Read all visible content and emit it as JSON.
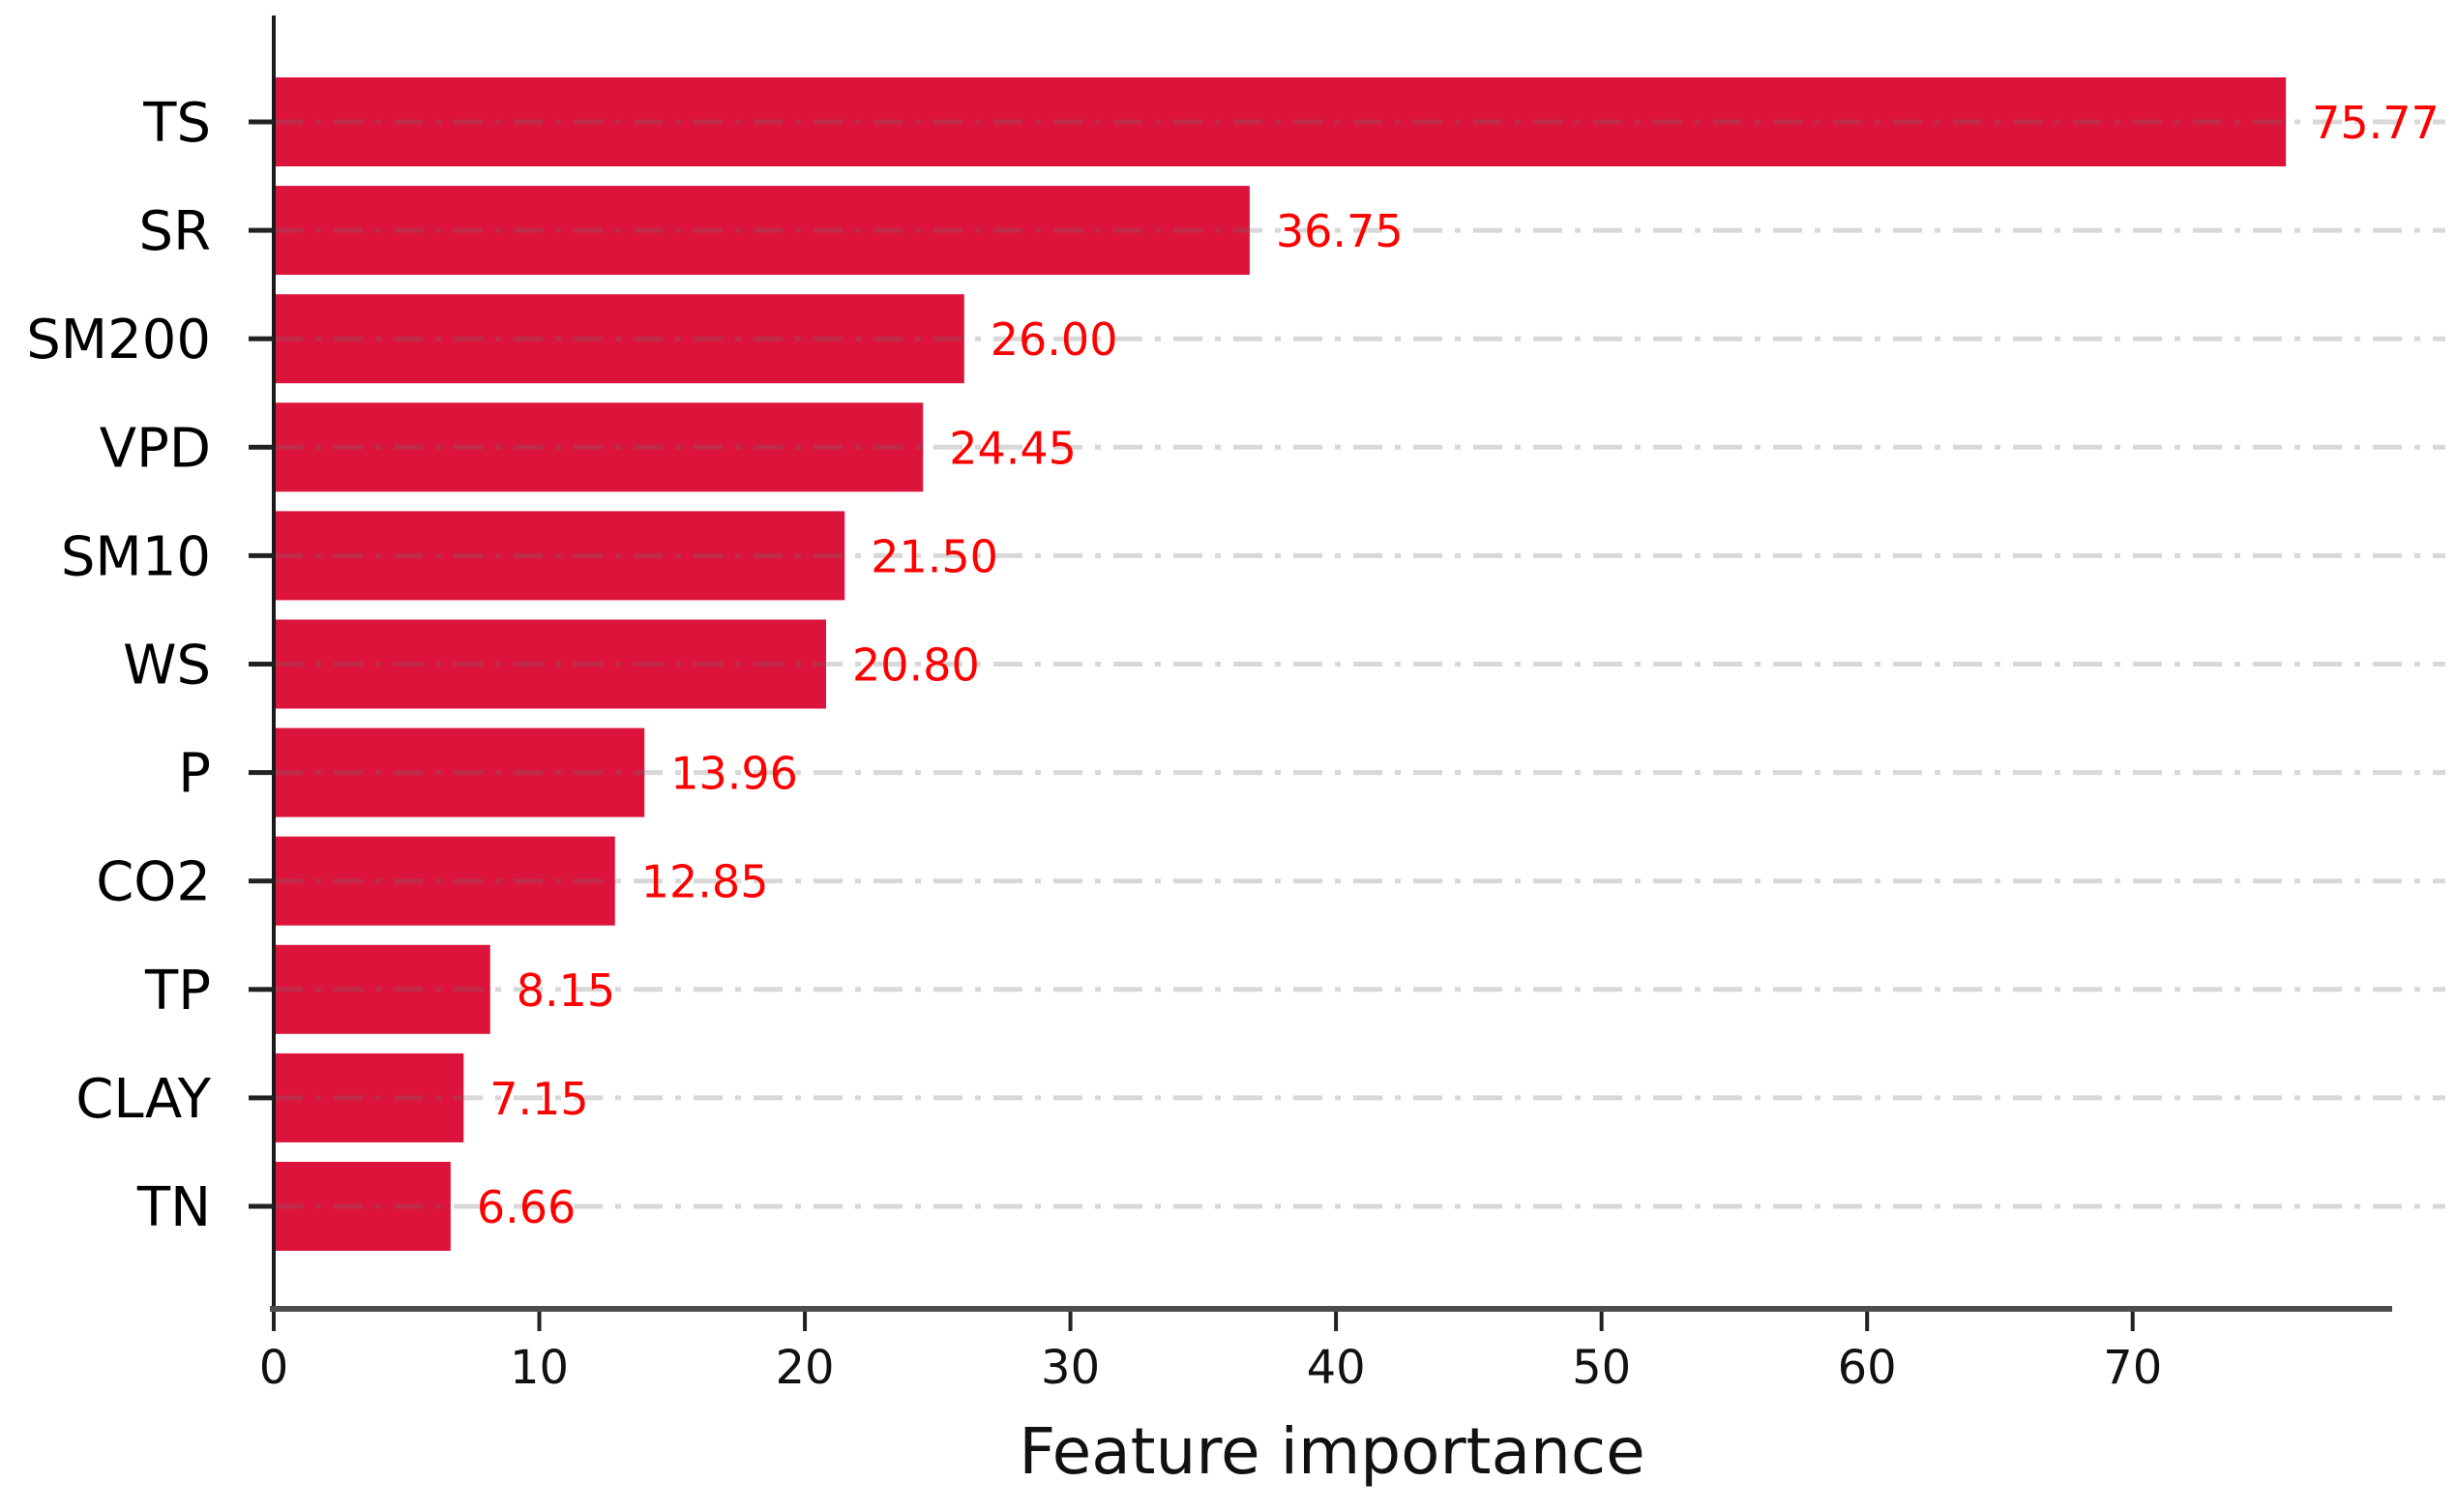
{
  "chart_data": {
    "type": "bar",
    "orientation": "horizontal",
    "title": "",
    "xlabel": "Feature importance",
    "ylabel": "",
    "categories": [
      "TS",
      "SR",
      "SM200",
      "VPD",
      "SM10",
      "WS",
      "P",
      "CO2",
      "TP",
      "CLAY",
      "TN"
    ],
    "values": [
      75.77,
      36.75,
      26.0,
      24.45,
      21.5,
      20.8,
      13.96,
      12.85,
      8.15,
      7.15,
      6.66
    ],
    "value_labels": [
      "75.77",
      "36.75",
      "26.00",
      "24.45",
      "21.50",
      "20.80",
      "13.96",
      "12.85",
      "8.15",
      "7.15",
      "6.66"
    ],
    "x_ticks": [
      0,
      10,
      20,
      30,
      40,
      50,
      60,
      70
    ],
    "xlim": [
      0,
      79.7
    ],
    "grid": {
      "axis": "y",
      "style": "dash-dot",
      "on": true
    },
    "legend": null,
    "colors": {
      "bar": "#DC143C",
      "value_label": "#FF0000",
      "category_label": "#000000",
      "tick_label": "#111111",
      "axis_left": "#1a1a1a",
      "axis_bottom": "#4d4d4d",
      "grid_line": "rgba(110,110,110,0.27)"
    }
  }
}
